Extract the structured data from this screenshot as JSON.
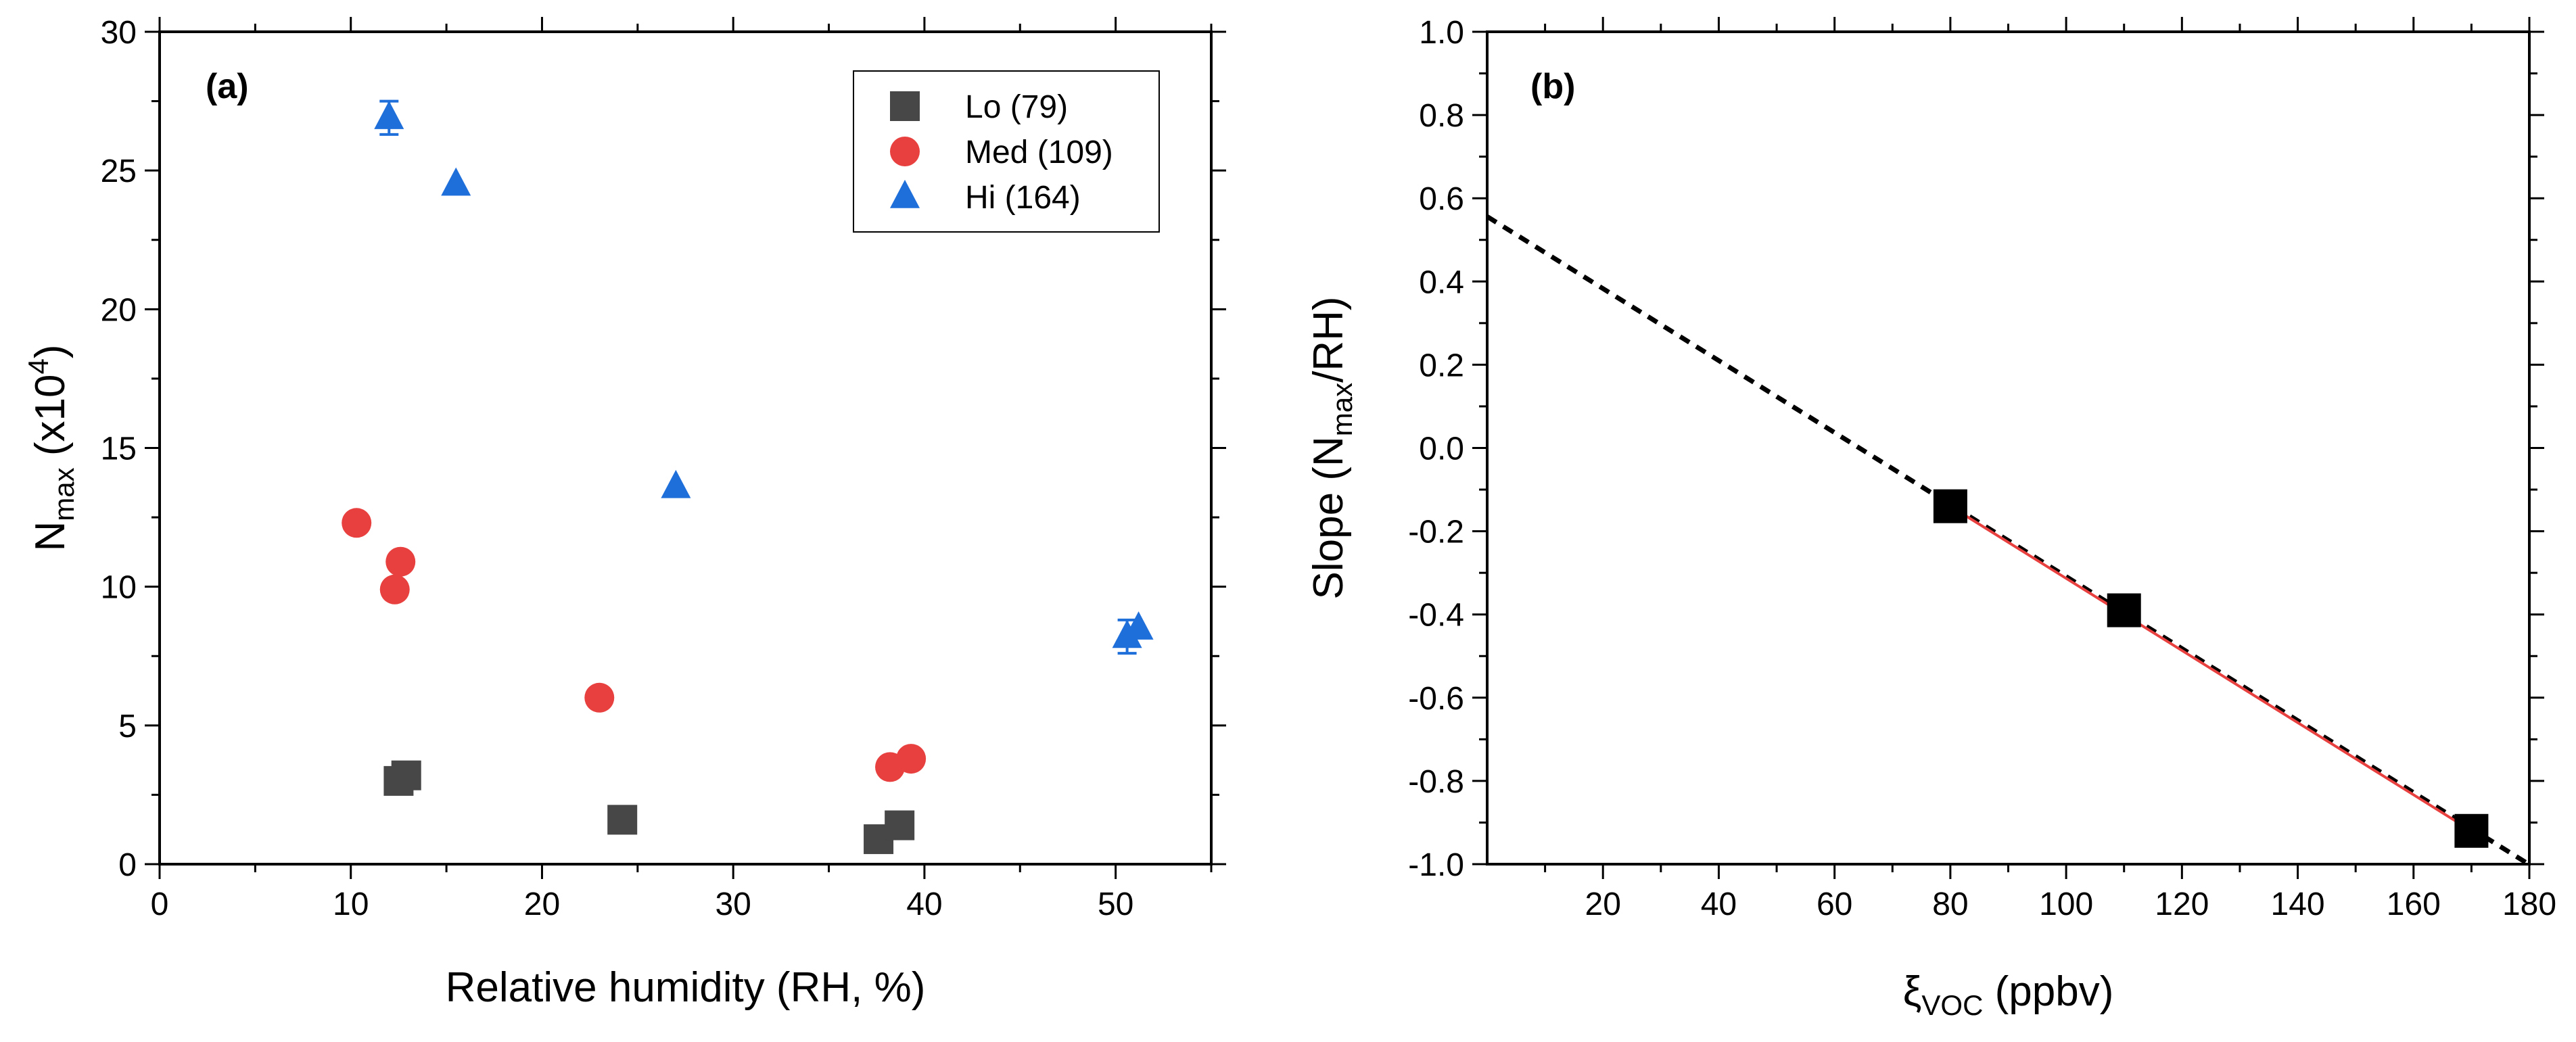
{
  "chart_data": [
    {
      "type": "scatter",
      "panel_label": "(a)",
      "xlabel": "Relative humidity (RH, %)",
      "ylabel_main": "N",
      "ylabel_sub": "max",
      "ylabel_unit_open": " (x10",
      "ylabel_unit_exp": "4",
      "ylabel_unit_close": ")",
      "xlim": [
        0,
        55
      ],
      "ylim": [
        0,
        30
      ],
      "xticks": [
        0,
        10,
        20,
        30,
        40,
        50
      ],
      "yticks": [
        0,
        5,
        10,
        15,
        20,
        25,
        30
      ],
      "xtick_labels": [
        "0",
        "10",
        "20",
        "30",
        "40",
        "50"
      ],
      "ytick_labels": [
        "0",
        "5",
        "10",
        "15",
        "20",
        "25",
        "30"
      ],
      "legend_position": "top-right",
      "series": [
        {
          "name": "Lo (79)",
          "marker": "square",
          "color": "#474747",
          "points": [
            {
              "x": 12.5,
              "y": 3.0
            },
            {
              "x": 12.9,
              "y": 3.2
            },
            {
              "x": 24.2,
              "y": 1.6
            },
            {
              "x": 37.6,
              "y": 0.9
            },
            {
              "x": 38.7,
              "y": 1.4
            }
          ]
        },
        {
          "name": "Med (109)",
          "marker": "circle",
          "color": "#e8403f",
          "points": [
            {
              "x": 10.3,
              "y": 12.3
            },
            {
              "x": 12.6,
              "y": 10.9
            },
            {
              "x": 12.3,
              "y": 9.9
            },
            {
              "x": 23.0,
              "y": 6.0
            },
            {
              "x": 38.2,
              "y": 3.5
            },
            {
              "x": 39.3,
              "y": 3.8
            }
          ]
        },
        {
          "name": "Hi (164)",
          "marker": "triangle",
          "color": "#1f6fdb",
          "points": [
            {
              "x": 12.0,
              "y": 26.9,
              "err": 0.6
            },
            {
              "x": 15.5,
              "y": 24.5
            },
            {
              "x": 27.0,
              "y": 13.6
            },
            {
              "x": 50.6,
              "y": 8.2,
              "err": 0.6
            },
            {
              "x": 51.2,
              "y": 8.5
            }
          ]
        }
      ]
    },
    {
      "type": "scatter",
      "panel_label": "(b)",
      "xlabel_main": "ξ",
      "xlabel_sub": "VOC",
      "xlabel_unit": " (ppbv)",
      "ylabel_prefix": "Slope (N",
      "ylabel_sub": "max",
      "ylabel_suffix": "/RH)",
      "xlim": [
        0,
        180
      ],
      "ylim": [
        -1.0,
        1.0
      ],
      "xticks": [
        20,
        40,
        60,
        80,
        100,
        120,
        140,
        160,
        180
      ],
      "yticks": [
        -1.0,
        -0.8,
        -0.6,
        -0.4,
        -0.2,
        0.0,
        0.2,
        0.4,
        0.6,
        0.8,
        1.0
      ],
      "xtick_labels": [
        "20",
        "40",
        "60",
        "80",
        "100",
        "120",
        "140",
        "160",
        "180"
      ],
      "ytick_labels": [
        "-1.0",
        "-0.8",
        "-0.6",
        "-0.4",
        "-0.2",
        "0.0",
        "0.2",
        "0.4",
        "0.6",
        "0.8",
        "1.0"
      ],
      "points": [
        {
          "x": 80,
          "y": -0.14
        },
        {
          "x": 110,
          "y": -0.39
        },
        {
          "x": 170,
          "y": -0.92
        }
      ],
      "marker_color": "#000000",
      "fit_line": {
        "slope": -0.00865,
        "intercept": 0.556,
        "style": "dashed",
        "color": "#000000",
        "x_range": [
          0,
          180
        ]
      },
      "segment_line": {
        "from": [
          80,
          -0.14
        ],
        "to": [
          170,
          -0.92
        ],
        "color": "#e8403f",
        "style": "solid"
      }
    }
  ]
}
